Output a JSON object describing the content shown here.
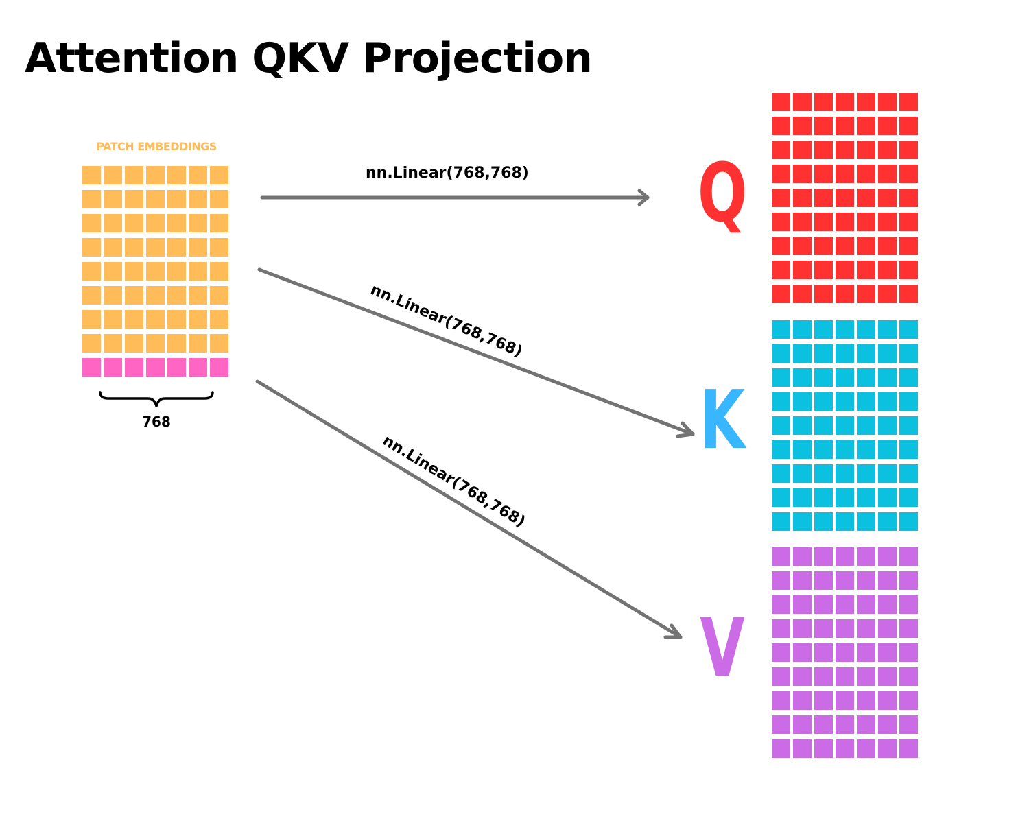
{
  "title": "Attention QKV Projection",
  "input": {
    "label": "PATCH EMBEDDINGS",
    "dimension_label": "768",
    "rows": 9,
    "cols": 7,
    "color": "#ffbc59",
    "last_row_color": "#ff66c4"
  },
  "outputs": [
    {
      "key": "q",
      "letter": "Q",
      "letter_color": "#ff3131",
      "cell_color": "#ff3131",
      "link_label": "nn.Linear(768,768)",
      "rows": 9,
      "cols": 7
    },
    {
      "key": "k",
      "letter": "K",
      "letter_color": "#38b6ff",
      "cell_color": "#0cc0df",
      "link_label": "nn.Linear(768,768)",
      "rows": 9,
      "cols": 7
    },
    {
      "key": "v",
      "letter": "V",
      "letter_color": "#cb6ce6",
      "cell_color": "#cb6ce6",
      "link_label": "nn.Linear(768,768)",
      "rows": 9,
      "cols": 7
    }
  ],
  "arrow_color": "#737373"
}
